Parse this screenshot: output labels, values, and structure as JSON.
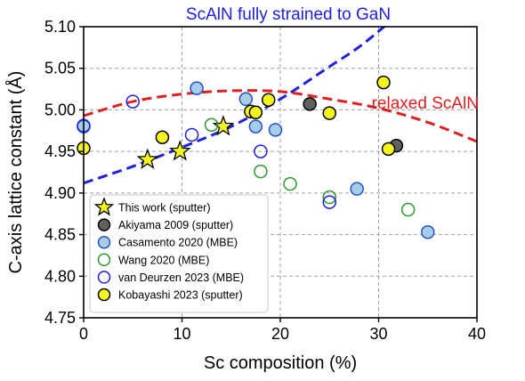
{
  "chart_data": {
    "type": "scatter",
    "xlabel": "Sc composition (%)",
    "ylabel": "C-axis lattice constant (Å)",
    "xlim": [
      0,
      40
    ],
    "ylim": [
      4.75,
      5.1
    ],
    "x_ticks": [
      0,
      10,
      20,
      30,
      40
    ],
    "y_ticks": [
      4.75,
      4.8,
      4.85,
      4.9,
      4.95,
      5.0,
      5.05,
      5.1
    ],
    "x_tick_labels": [
      "0",
      "10",
      "20",
      "30",
      "40"
    ],
    "y_tick_labels": [
      "4.75",
      "4.80",
      "4.85",
      "4.90",
      "4.95",
      "5.00",
      "5.05",
      "5.10"
    ],
    "grid": true,
    "legend_position": "lower-left",
    "curves": [
      {
        "name": "ScAlN fully strained to GaN",
        "color": "#2020e0",
        "style": "dashed",
        "x": [
          0,
          5,
          10,
          15,
          20,
          25,
          28.5,
          33
        ],
        "y": [
          4.912,
          4.932,
          4.955,
          4.98,
          5.013,
          5.052,
          5.08,
          5.125
        ]
      },
      {
        "name": "relaxed ScAlN",
        "color": "#e02020",
        "style": "dashed",
        "x": [
          0,
          5,
          10,
          15,
          20,
          25,
          30,
          35,
          40
        ],
        "y": [
          4.993,
          5.01,
          5.019,
          5.023,
          5.022,
          5.013,
          5.002,
          4.985,
          4.962
        ]
      }
    ],
    "series": [
      {
        "name": "This work (sputter)",
        "marker": "star",
        "fill": "#f5f51e",
        "stroke": "#000000",
        "x": [
          6.5,
          9.8,
          14.2
        ],
        "y": [
          4.94,
          4.95,
          4.98
        ]
      },
      {
        "name": "Akiyama 2009 (sputter)",
        "marker": "circle",
        "fill": "#606060",
        "stroke": "#000000",
        "x": [
          23.0,
          31.8
        ],
        "y": [
          5.007,
          4.957
        ]
      },
      {
        "name": "Casamento 2020 (MBE)",
        "marker": "circle",
        "fill": "#a6cdea",
        "stroke": "#2850c8",
        "x": [
          0,
          11.5,
          16.5,
          17.5,
          19.5,
          27.8,
          35.0
        ],
        "y": [
          4.98,
          5.026,
          5.013,
          4.98,
          4.976,
          4.905,
          4.853
        ]
      },
      {
        "name": "Wang 2020 (MBE)",
        "marker": "circle",
        "fill": "none",
        "stroke": "#2a9a2a",
        "x": [
          13.0,
          18.0,
          21.0,
          25.0,
          33.0
        ],
        "y": [
          4.982,
          4.926,
          4.911,
          4.895,
          4.88
        ]
      },
      {
        "name": "van Deurzen 2023 (MBE)",
        "marker": "circle",
        "fill": "none",
        "stroke": "#2020e0",
        "x": [
          0,
          5.0,
          11.0,
          18.0,
          25.0
        ],
        "y": [
          4.981,
          5.01,
          4.97,
          4.95,
          4.889
        ]
      },
      {
        "name": "Kobayashi 2023 (sputter)",
        "marker": "circle",
        "fill": "#f5f51e",
        "stroke": "#000000",
        "x": [
          0,
          8.0,
          17.0,
          17.5,
          18.8,
          25.0,
          30.5,
          31.0
        ],
        "y": [
          4.954,
          4.967,
          4.998,
          4.997,
          5.012,
          4.996,
          5.033,
          4.953
        ]
      }
    ]
  }
}
